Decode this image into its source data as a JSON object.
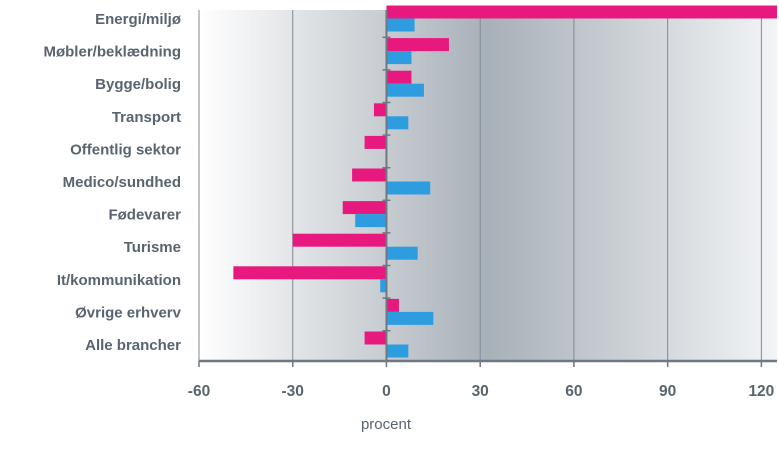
{
  "chart_data": {
    "type": "bar",
    "orientation": "horizontal",
    "categories": [
      "Energi/miljø",
      "Møbler/beklædning",
      "Bygge/bolig",
      "Transport",
      "Offentlig sektor",
      "Medico/sundhed",
      "Fødevarer",
      "Turisme",
      "It/kommunikation",
      "Øvrige erhverv",
      "Alle brancher"
    ],
    "series": [
      {
        "color": "#e8197e",
        "values": [
          128,
          20,
          8,
          -4,
          -7,
          -11,
          -14,
          -30,
          -49,
          4,
          -7
        ]
      },
      {
        "color": "#2e9de0",
        "values": [
          9,
          8,
          12,
          7,
          0,
          14,
          -10,
          10,
          -2,
          15,
          7
        ]
      }
    ],
    "xlim": [
      -60,
      125
    ],
    "xticks": [
      "-60",
      "-30",
      "0",
      "30",
      "60",
      "90",
      "120"
    ],
    "xlabel": "procent",
    "grid": true
  }
}
